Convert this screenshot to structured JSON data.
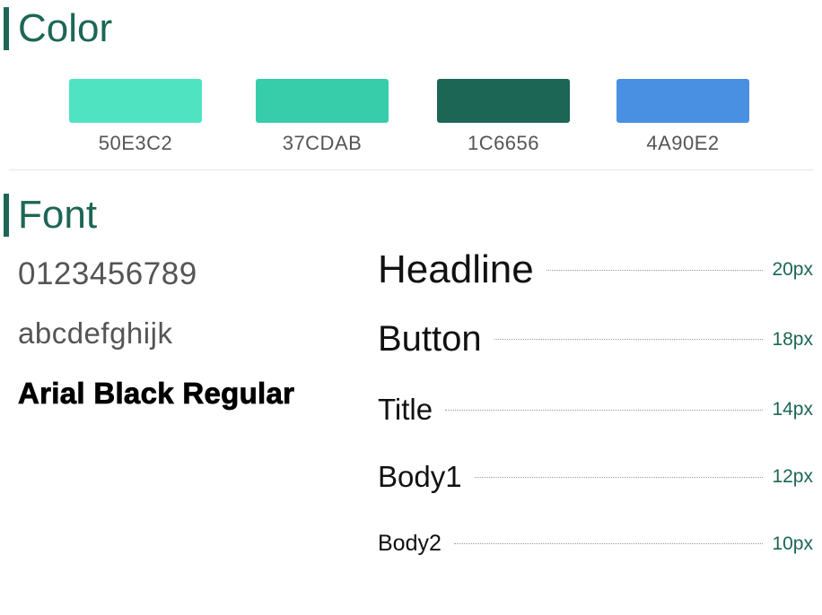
{
  "color_section": {
    "title": "Color",
    "swatches": [
      {
        "hex": "#50E3C2",
        "label": "50E3C2"
      },
      {
        "hex": "#37CDAB",
        "label": "37CDAB"
      },
      {
        "hex": "#1C6656",
        "label": "1C6656"
      },
      {
        "hex": "#4A90E2",
        "label": "4A90E2"
      }
    ]
  },
  "font_section": {
    "title": "Font",
    "samples": [
      "0123456789",
      "abcdefghijk",
      "Arial Black Regular"
    ],
    "type_scale": [
      {
        "name": "Headline",
        "size": "20px"
      },
      {
        "name": "Button",
        "size": "18px"
      },
      {
        "name": "Title",
        "size": "14px"
      },
      {
        "name": "Body1",
        "size": "12px"
      },
      {
        "name": "Body2",
        "size": "10px"
      }
    ]
  },
  "colors": {
    "accent": "#1C6656",
    "text_muted": "#555555"
  }
}
